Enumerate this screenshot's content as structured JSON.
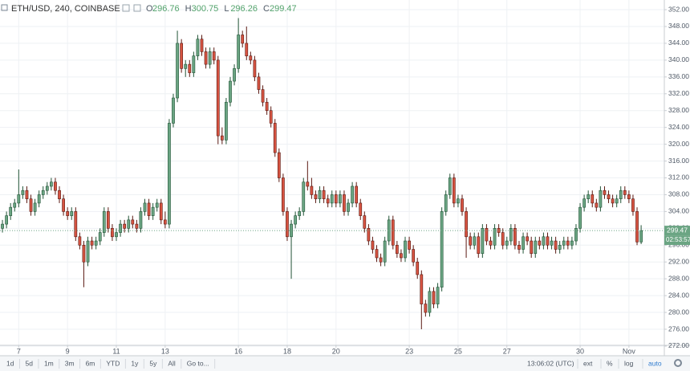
{
  "chart_data": {
    "type": "candlestick",
    "title": "ETH/USD, 240, COINBASE",
    "header_labels": [
      "O",
      "H",
      "L",
      "C"
    ],
    "countdown": "02:53:57",
    "up_color": "#6ba583",
    "down_color": "#d75442",
    "grid": true,
    "xlim": [
      -0.6,
      162.7
    ],
    "xticks": [
      {
        "value": 4,
        "label": "7"
      },
      {
        "value": 16,
        "label": "9"
      },
      {
        "value": 28,
        "label": "11"
      },
      {
        "value": 40,
        "label": "13"
      },
      {
        "value": 58,
        "label": "16"
      },
      {
        "value": 70,
        "label": "18"
      },
      {
        "value": 82,
        "label": "20"
      },
      {
        "value": 100,
        "label": "23"
      },
      {
        "value": 112,
        "label": "25"
      },
      {
        "value": 124,
        "label": "27"
      },
      {
        "value": 142,
        "label": "30"
      },
      {
        "value": 154,
        "label": "Nov"
      }
    ],
    "ylim": [
      271.8,
      354.3
    ],
    "yticks": [
      {
        "value": 272,
        "label": "272.00"
      },
      {
        "value": 276,
        "label": "276.00"
      },
      {
        "value": 280,
        "label": "280.00"
      },
      {
        "value": 284,
        "label": "284.00"
      },
      {
        "value": 288,
        "label": "288.00"
      },
      {
        "value": 292,
        "label": "292.00"
      },
      {
        "value": 296,
        "label": "296.00"
      },
      {
        "value": 300,
        "label": "300.00"
      },
      {
        "value": 304,
        "label": "304.00"
      },
      {
        "value": 308,
        "label": "308.00"
      },
      {
        "value": 312,
        "label": "312.00"
      },
      {
        "value": 316,
        "label": "316.00"
      },
      {
        "value": 320,
        "label": "320.00"
      },
      {
        "value": 324,
        "label": "324.00"
      },
      {
        "value": 328,
        "label": "328.00"
      },
      {
        "value": 332,
        "label": "332.00"
      },
      {
        "value": 336,
        "label": "336.00"
      },
      {
        "value": 340,
        "label": "340.00"
      },
      {
        "value": 344,
        "label": "344.00"
      },
      {
        "value": 348,
        "label": "348.00"
      },
      {
        "value": 352,
        "label": "352.00"
      }
    ],
    "candles": [
      [
        300,
        302,
        299,
        301
      ],
      [
        301,
        304,
        300,
        303
      ],
      [
        303,
        306,
        302,
        305
      ],
      [
        305,
        307,
        304,
        306
      ],
      [
        306,
        314,
        305,
        308
      ],
      [
        308,
        310,
        307,
        309
      ],
      [
        309,
        310,
        306,
        307
      ],
      [
        307,
        308,
        303,
        304
      ],
      [
        304,
        307,
        303,
        306
      ],
      [
        306,
        309,
        305,
        308
      ],
      [
        308,
        310,
        307,
        309
      ],
      [
        309,
        311,
        308,
        310
      ],
      [
        310,
        312,
        309,
        311
      ],
      [
        311,
        312,
        308,
        309
      ],
      [
        309,
        310,
        306,
        307
      ],
      [
        307,
        308,
        303,
        304
      ],
      [
        304,
        305,
        302,
        303
      ],
      [
        303,
        305,
        302,
        304
      ],
      [
        304,
        305,
        297,
        298
      ],
      [
        298,
        299,
        295,
        296
      ],
      [
        296,
        297,
        286,
        292
      ],
      [
        292,
        298,
        291,
        297
      ],
      [
        297,
        298,
        295,
        296
      ],
      [
        296,
        298,
        295,
        297
      ],
      [
        297,
        300,
        296,
        299
      ],
      [
        299,
        305,
        298,
        304
      ],
      [
        304,
        305,
        299,
        300
      ],
      [
        300,
        301,
        297,
        298
      ],
      [
        298,
        300,
        297,
        299
      ],
      [
        299,
        302,
        298,
        301
      ],
      [
        301,
        302,
        299,
        300
      ],
      [
        300,
        303,
        299,
        302
      ],
      [
        302,
        303,
        300,
        301
      ],
      [
        301,
        302,
        299,
        300
      ],
      [
        300,
        305,
        299,
        304
      ],
      [
        304,
        307,
        303,
        306
      ],
      [
        306,
        307,
        302,
        303
      ],
      [
        303,
        306,
        302,
        305
      ],
      [
        305,
        307,
        304,
        306
      ],
      [
        306,
        307,
        301,
        302
      ],
      [
        302,
        304,
        300,
        301
      ],
      [
        301,
        326,
        300,
        325
      ],
      [
        325,
        332,
        324,
        331
      ],
      [
        331,
        347,
        330,
        344
      ],
      [
        344,
        345,
        337,
        338
      ],
      [
        338,
        340,
        336,
        339
      ],
      [
        339,
        340,
        336,
        337
      ],
      [
        337,
        342,
        336,
        341
      ],
      [
        341,
        346,
        340,
        345
      ],
      [
        345,
        346,
        341,
        342
      ],
      [
        342,
        343,
        338,
        339
      ],
      [
        339,
        343,
        338,
        342
      ],
      [
        342,
        343,
        339,
        340
      ],
      [
        340,
        341,
        320,
        322
      ],
      [
        322,
        324,
        320,
        321
      ],
      [
        321,
        331,
        320,
        330
      ],
      [
        330,
        336,
        329,
        335
      ],
      [
        335,
        339,
        334,
        338
      ],
      [
        338,
        350,
        337,
        346
      ],
      [
        346,
        347,
        343,
        344
      ],
      [
        344,
        348,
        340,
        341
      ],
      [
        341,
        342,
        339,
        340
      ],
      [
        340,
        341,
        335,
        336
      ],
      [
        336,
        337,
        332,
        333
      ],
      [
        333,
        334,
        329,
        330
      ],
      [
        330,
        331,
        327,
        328
      ],
      [
        328,
        329,
        324,
        325
      ],
      [
        325,
        326,
        317,
        318
      ],
      [
        318,
        319,
        311,
        312
      ],
      [
        312,
        313,
        303,
        304
      ],
      [
        304,
        305,
        297,
        298
      ],
      [
        298,
        302,
        288,
        301
      ],
      [
        301,
        304,
        300,
        303
      ],
      [
        303,
        305,
        302,
        304
      ],
      [
        304,
        312,
        303,
        311
      ],
      [
        311,
        316,
        309,
        310
      ],
      [
        310,
        312,
        307,
        308
      ],
      [
        308,
        309,
        306,
        307
      ],
      [
        307,
        310,
        306,
        309
      ],
      [
        309,
        310,
        306,
        307
      ],
      [
        307,
        308,
        305,
        306
      ],
      [
        306,
        309,
        305,
        308
      ],
      [
        308,
        309,
        305,
        306
      ],
      [
        306,
        309,
        305,
        308
      ],
      [
        308,
        309,
        303,
        304
      ],
      [
        304,
        307,
        303,
        306
      ],
      [
        306,
        311,
        305,
        310
      ],
      [
        310,
        311,
        305,
        306
      ],
      [
        306,
        307,
        302,
        303
      ],
      [
        303,
        304,
        299,
        300
      ],
      [
        300,
        301,
        296,
        297
      ],
      [
        297,
        298,
        294,
        295
      ],
      [
        295,
        296,
        292,
        293
      ],
      [
        293,
        294,
        291,
        292
      ],
      [
        292,
        298,
        291,
        297
      ],
      [
        297,
        303,
        296,
        302
      ],
      [
        302,
        303,
        295,
        296
      ],
      [
        296,
        297,
        293,
        294
      ],
      [
        294,
        295,
        292,
        293
      ],
      [
        293,
        298,
        292,
        297
      ],
      [
        297,
        298,
        294,
        295
      ],
      [
        295,
        296,
        291,
        292
      ],
      [
        292,
        293,
        288,
        289
      ],
      [
        289,
        290,
        276,
        282
      ],
      [
        282,
        283,
        279,
        280
      ],
      [
        280,
        286,
        279,
        285
      ],
      [
        285,
        286,
        281,
        282
      ],
      [
        282,
        287,
        281,
        286
      ],
      [
        286,
        305,
        285,
        304
      ],
      [
        304,
        309,
        303,
        308
      ],
      [
        308,
        313,
        307,
        312
      ],
      [
        312,
        313,
        305,
        306
      ],
      [
        306,
        308,
        305,
        307
      ],
      [
        307,
        308,
        303,
        304
      ],
      [
        304,
        305,
        293,
        298
      ],
      [
        298,
        299,
        295,
        296
      ],
      [
        296,
        299,
        295,
        298
      ],
      [
        298,
        299,
        293,
        294
      ],
      [
        294,
        301,
        293,
        300
      ],
      [
        300,
        301,
        296,
        297
      ],
      [
        297,
        298,
        295,
        296
      ],
      [
        296,
        301,
        295,
        300
      ],
      [
        300,
        301,
        298,
        299
      ],
      [
        299,
        300,
        295,
        296
      ],
      [
        296,
        298,
        295,
        297
      ],
      [
        297,
        301,
        296,
        300
      ],
      [
        300,
        301,
        295,
        296
      ],
      [
        296,
        297,
        294,
        295
      ],
      [
        295,
        299,
        294,
        298
      ],
      [
        298,
        299,
        296,
        297
      ],
      [
        297,
        298,
        293,
        294
      ],
      [
        294,
        298,
        293,
        297
      ],
      [
        297,
        298,
        295,
        296
      ],
      [
        296,
        299,
        295,
        298
      ],
      [
        298,
        299,
        295,
        296
      ],
      [
        296,
        298,
        295,
        297
      ],
      [
        297,
        298,
        294,
        295
      ],
      [
        295,
        297,
        294,
        296
      ],
      [
        296,
        298,
        295,
        297
      ],
      [
        297,
        298,
        295,
        296
      ],
      [
        296,
        298,
        295,
        297
      ],
      [
        297,
        301,
        296,
        300
      ],
      [
        300,
        306,
        299,
        305
      ],
      [
        305,
        308,
        304,
        307
      ],
      [
        307,
        309,
        306,
        308
      ],
      [
        308,
        309,
        305,
        306
      ],
      [
        306,
        307,
        304,
        305
      ],
      [
        305,
        310,
        304,
        309
      ],
      [
        309,
        310,
        307,
        308
      ],
      [
        308,
        309,
        306,
        307
      ],
      [
        307,
        308,
        305,
        306
      ],
      [
        306,
        308,
        305,
        307
      ],
      [
        307,
        310,
        306,
        309
      ],
      [
        309,
        310,
        307,
        308
      ],
      [
        308,
        309,
        306,
        307
      ],
      [
        307,
        308,
        303,
        304
      ],
      [
        304,
        305,
        296,
        296.76
      ],
      [
        296.76,
        300.75,
        296.26,
        299.47
      ]
    ]
  },
  "toolbar": {
    "ranges": [
      "1d",
      "5d",
      "1m",
      "3m",
      "6m",
      "YTD",
      "1y",
      "5y",
      "All",
      "Go to..."
    ],
    "clock": "13:06:02 (UTC)",
    "options": [
      "ext",
      "%",
      "log",
      "auto"
    ]
  }
}
